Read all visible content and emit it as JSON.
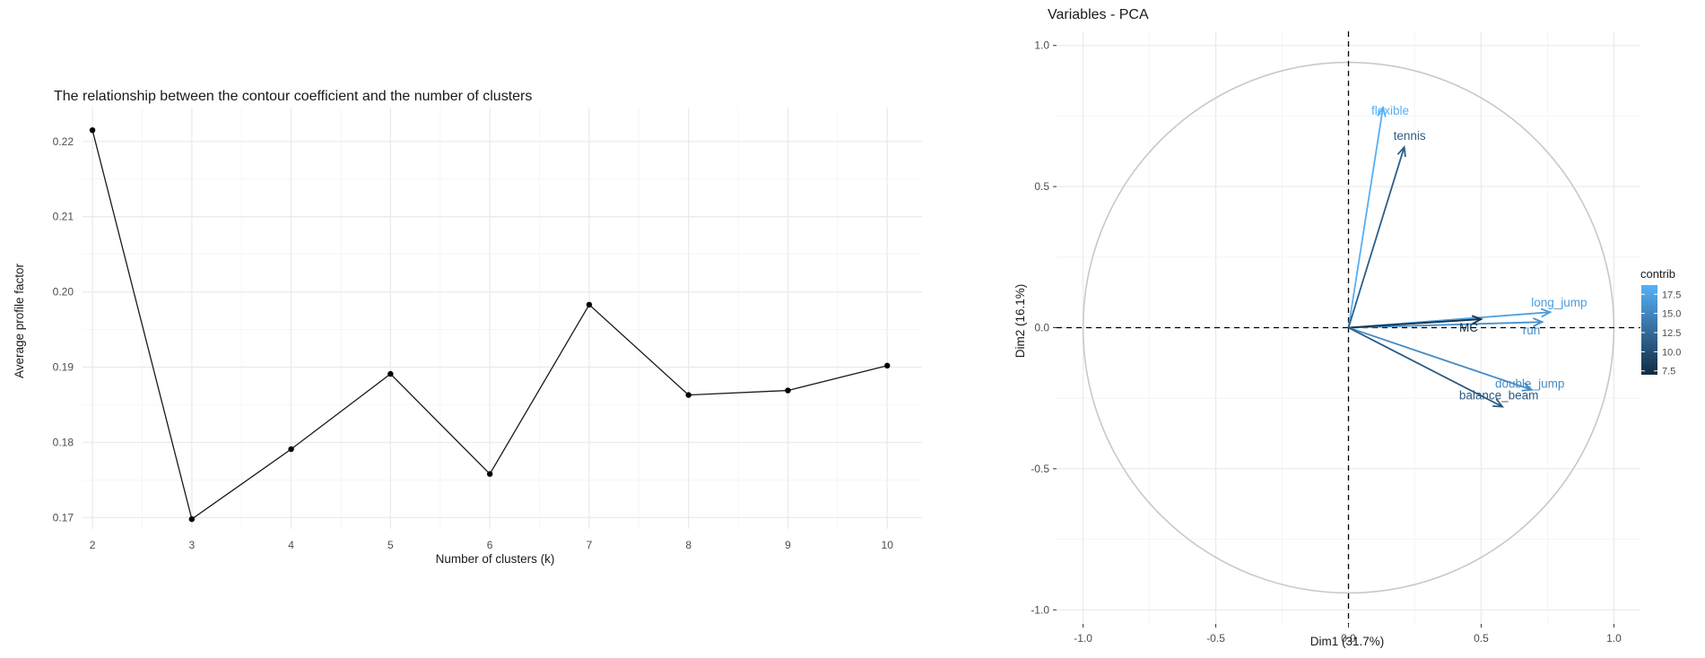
{
  "chart_data": [
    {
      "type": "line",
      "title": "The relationship between the contour coefficient and the number of clusters",
      "xlabel": "Number of clusters (k)",
      "ylabel": "Average profile factor",
      "x": [
        2,
        3,
        4,
        5,
        6,
        7,
        8,
        9,
        10
      ],
      "y": [
        0.2215,
        0.1698,
        0.1791,
        0.1891,
        0.1758,
        0.1983,
        0.1863,
        0.1869,
        0.1902
      ],
      "xticks": [
        "2",
        "3",
        "4",
        "5",
        "6",
        "7",
        "8",
        "9",
        "10"
      ],
      "yticks": [
        "0.17",
        "0.18",
        "0.19",
        "0.20",
        "0.21",
        "0.22"
      ],
      "xlim": [
        1.9,
        10.35
      ],
      "ylim": [
        0.1685,
        0.2245
      ],
      "grid": true,
      "line_color": "#1a1a1a",
      "point_color": "#000000"
    },
    {
      "type": "scatter",
      "subtype": "pca-variable-arrows",
      "title": "Variables - PCA",
      "xlabel": "Dim1 (31.7%)",
      "ylabel": "Dim2 (16.1%)",
      "xlim": [
        -1.1,
        1.1
      ],
      "ylim": [
        -1.05,
        1.05
      ],
      "xticks": [
        "-1.0",
        "-0.5",
        "0.0",
        "0.5",
        "1.0"
      ],
      "yticks": [
        "-1.0",
        "-0.5",
        "0.0",
        "0.5",
        "1.0"
      ],
      "grid": true,
      "circle_color": "#c8c8c8",
      "variables": [
        {
          "label": "flexible",
          "x": 0.13,
          "y": 0.78,
          "contrib": 18.5
        },
        {
          "label": "tennis",
          "x": 0.21,
          "y": 0.64,
          "contrib": 11.5
        },
        {
          "label": "long_jump",
          "x": 0.76,
          "y": 0.055,
          "contrib": 17.0
        },
        {
          "label": "run",
          "x": 0.73,
          "y": 0.02,
          "contrib": 16.0
        },
        {
          "label": "MC",
          "x": 0.5,
          "y": 0.03,
          "contrib": 7.6
        },
        {
          "label": "double_jump",
          "x": 0.69,
          "y": -0.22,
          "contrib": 15.5
        },
        {
          "label": "balance_beam",
          "x": 0.58,
          "y": -0.28,
          "contrib": 11.0
        }
      ],
      "legend": {
        "title": "contrib",
        "placement": "right",
        "ticks": [
          "7.5",
          "10.0",
          "12.5",
          "15.0",
          "17.5"
        ],
        "min": 7.0,
        "max": 18.7,
        "color_low": "#132b43",
        "color_high": "#56b1f7"
      }
    }
  ]
}
